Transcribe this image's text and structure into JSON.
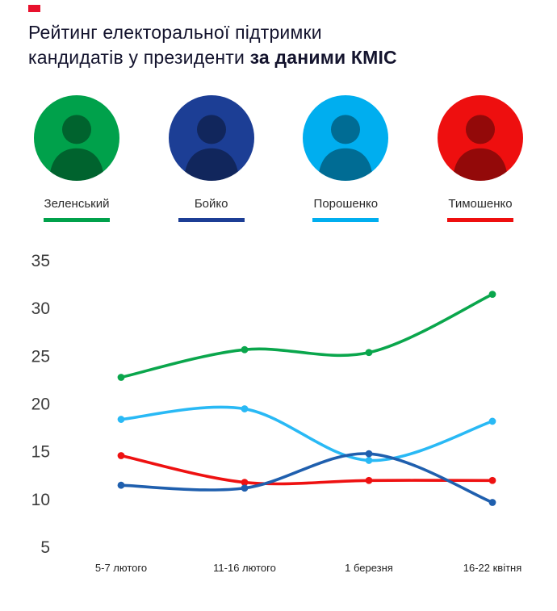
{
  "brand": {
    "accent_color": "#e8112d"
  },
  "header": {
    "title_line1": "Рейтинг електоральної підтримки",
    "title_line2_regular": "кандидатів у президенти ",
    "title_line2_bold": "за даними КМІС"
  },
  "legend": {
    "candidates": [
      {
        "name": "Зеленський",
        "color": "#00a14b"
      },
      {
        "name": "Бойко",
        "color": "#1c3e95"
      },
      {
        "name": "Порошенко",
        "color": "#00aeef"
      },
      {
        "name": "Тимошенко",
        "color": "#ee0f0f"
      }
    ]
  },
  "chart_data": {
    "type": "line",
    "categories": [
      "5-7 лютого",
      "11-16 лютого",
      "1 березня",
      "16-22 квітня"
    ],
    "series": [
      {
        "name": "Зеленський",
        "line_color": "#0aa64c",
        "values": [
          22.7,
          25.6,
          25.3,
          31.4
        ]
      },
      {
        "name": "Бойко",
        "line_color": "#1f5fae",
        "values": [
          11.4,
          11.1,
          14.7,
          9.6
        ]
      },
      {
        "name": "Порошенко",
        "line_color": "#29b9f5",
        "values": [
          18.3,
          19.4,
          14.0,
          18.1
        ]
      },
      {
        "name": "Тимошенко",
        "line_color": "#ee1111",
        "values": [
          14.5,
          11.7,
          11.9,
          11.9
        ]
      }
    ],
    "yticks": [
      35,
      30,
      25,
      20,
      15,
      10,
      5
    ],
    "ylim": [
      5,
      35
    ],
    "grid": false,
    "legend_position": "top-avatars"
  }
}
